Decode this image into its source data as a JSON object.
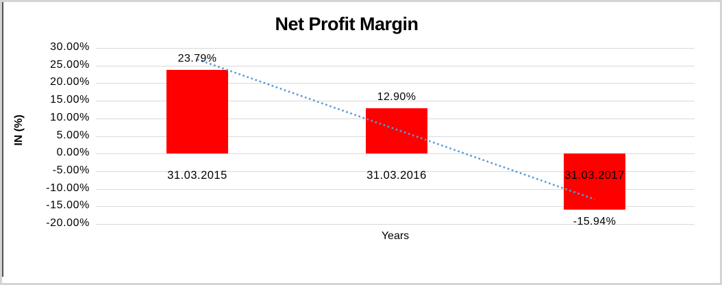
{
  "chart_data": {
    "type": "bar",
    "title": "Net Profit Margin",
    "xlabel": "Years",
    "ylabel": "IN (%)",
    "categories": [
      "31.03.2015",
      "31.03.2016",
      "31.03.2017"
    ],
    "series": [
      {
        "name": "Net Profit Margin",
        "values": [
          23.79,
          12.9,
          -15.94
        ]
      }
    ],
    "data_labels": [
      "23.79%",
      "12.90%",
      "-15.94%"
    ],
    "y_ticks": [
      "30.00%",
      "25.00%",
      "20.00%",
      "15.00%",
      "10.00%",
      "5.00%",
      "0.00%",
      "-5.00%",
      "-10.00%",
      "-15.00%",
      "-20.00%"
    ],
    "y_tick_values": [
      30,
      25,
      20,
      15,
      10,
      5,
      0,
      -5,
      -10,
      -15,
      -20
    ],
    "ylim": [
      -20,
      30
    ],
    "grid": true,
    "legend": false,
    "bar_color": "#ff0000",
    "trendline": {
      "type": "linear",
      "style": "dotted",
      "color": "#5b9bd5",
      "start_value": 26.78,
      "end_value": -12.95
    }
  }
}
